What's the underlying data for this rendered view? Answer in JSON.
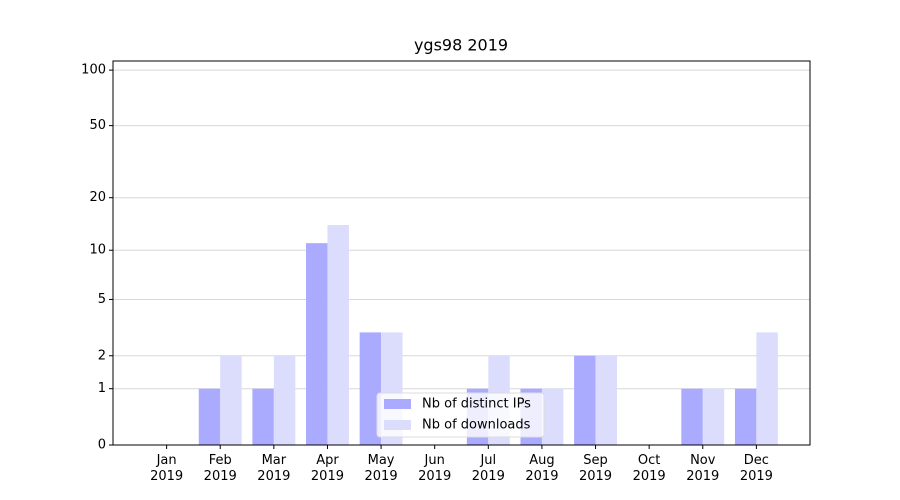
{
  "chart_data": {
    "type": "bar",
    "title": "ygs98 2019",
    "categories": [
      "Jan\n2019",
      "Feb\n2019",
      "Mar\n2019",
      "Apr\n2019",
      "May\n2019",
      "Jun\n2019",
      "Jul\n2019",
      "Aug\n2019",
      "Sep\n2019",
      "Oct\n2019",
      "Nov\n2019",
      "Dec\n2019"
    ],
    "series": [
      {
        "name": "Nb of distinct IPs",
        "color": "#aaaaff",
        "values": [
          0,
          1,
          1,
          11,
          3,
          0,
          1,
          1,
          2,
          0,
          1,
          1
        ]
      },
      {
        "name": "Nb of downloads",
        "color": "#dcdcfd",
        "values": [
          0,
          2,
          2,
          14,
          3,
          0,
          2,
          1,
          2,
          0,
          1,
          3
        ]
      }
    ],
    "yscale": "log1p",
    "ylim": [
      0,
      112
    ],
    "yticks": [
      0,
      1,
      2,
      5,
      10,
      20,
      50,
      100
    ],
    "grid": true,
    "legend": "lower center"
  }
}
